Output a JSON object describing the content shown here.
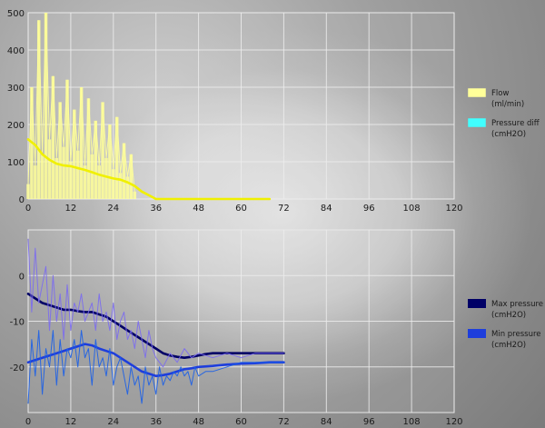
{
  "chart_data": [
    {
      "type": "area",
      "xlim": [
        0,
        120
      ],
      "ylim": [
        0,
        500
      ],
      "xticks": [
        "0",
        "12",
        "24",
        "36",
        "48",
        "60",
        "72",
        "84",
        "96",
        "108",
        "120"
      ],
      "yticks": [
        "0",
        "100",
        "200",
        "300",
        "400",
        "500"
      ],
      "grid": true,
      "legend_position": "right",
      "series": [
        {
          "name": "Flow\n(ml/min)",
          "color": "#ffff99",
          "style": "noisy-fill",
          "x": [
            0,
            1,
            2,
            3,
            4,
            5,
            6,
            7,
            8,
            9,
            10,
            11,
            12,
            13,
            14,
            15,
            16,
            17,
            18,
            19,
            20,
            21,
            22,
            23,
            24,
            25,
            26,
            27,
            28,
            29,
            30
          ],
          "values": [
            40,
            300,
            90,
            480,
            120,
            500,
            160,
            330,
            110,
            260,
            140,
            320,
            100,
            240,
            130,
            300,
            90,
            270,
            120,
            210,
            90,
            260,
            110,
            200,
            80,
            220,
            70,
            150,
            60,
            120,
            20
          ]
        },
        {
          "name": "Flow\n(ml/min)",
          "color": "#f0f000",
          "style": "smooth-line",
          "x": [
            0,
            2,
            4,
            6,
            8,
            10,
            12,
            14,
            16,
            18,
            20,
            22,
            24,
            26,
            28,
            30,
            32,
            34,
            36,
            40,
            48,
            60,
            68
          ],
          "values": [
            160,
            145,
            120,
            105,
            95,
            90,
            88,
            83,
            78,
            72,
            65,
            60,
            55,
            52,
            45,
            35,
            20,
            10,
            0,
            0,
            0,
            0,
            0
          ]
        },
        {
          "name": "Pressure diff\n(cmH2O)",
          "color": "#40ffff",
          "style": "line",
          "x": [],
          "values": []
        }
      ]
    },
    {
      "type": "line",
      "xlim": [
        0,
        120
      ],
      "ylim": [
        -30,
        10
      ],
      "xticks": [
        "0",
        "12",
        "24",
        "36",
        "48",
        "60",
        "72",
        "84",
        "96",
        "108",
        "120"
      ],
      "yticks": [
        "0",
        "-10",
        "-20"
      ],
      "grid": true,
      "legend_position": "right",
      "series": [
        {
          "name": "Max pressure\n(cmH2O)",
          "color": "#000066",
          "style": "smooth-line",
          "x": [
            0,
            2,
            4,
            6,
            8,
            10,
            12,
            14,
            16,
            18,
            20,
            22,
            24,
            26,
            28,
            30,
            32,
            34,
            36,
            38,
            40,
            42,
            44,
            46,
            48,
            50,
            52,
            56,
            60,
            64,
            68,
            72
          ],
          "values": [
            -4,
            -5,
            -6,
            -6.5,
            -7,
            -7.5,
            -7.5,
            -7.8,
            -8,
            -8,
            -8.5,
            -9,
            -10,
            -11,
            -12,
            -13,
            -14,
            -15,
            -16,
            -17,
            -17.5,
            -17.8,
            -18,
            -17.8,
            -17.5,
            -17.2,
            -17,
            -17,
            -17,
            -17,
            -17,
            -17
          ]
        },
        {
          "name": "Max pressure\n(cmH2O)",
          "color": "#7b6cf0",
          "style": "noisy-line",
          "x": [
            0,
            1,
            2,
            3,
            4,
            5,
            6,
            7,
            8,
            9,
            10,
            11,
            12,
            13,
            14,
            15,
            16,
            17,
            18,
            19,
            20,
            21,
            22,
            23,
            24,
            25,
            26,
            27,
            28,
            29,
            30,
            31,
            32,
            33,
            34,
            35,
            36,
            38,
            40,
            42,
            44,
            46,
            48,
            52,
            56,
            60,
            64,
            68,
            72
          ],
          "values": [
            8,
            -8,
            6,
            -6,
            -2,
            2,
            -12,
            0,
            -10,
            -4,
            -14,
            -2,
            -12,
            -6,
            -8,
            -4,
            -10,
            -8,
            -6,
            -12,
            -4,
            -10,
            -8,
            -12,
            -6,
            -14,
            -10,
            -8,
            -14,
            -12,
            -16,
            -10,
            -14,
            -18,
            -12,
            -16,
            -18,
            -20,
            -17,
            -19,
            -16,
            -18,
            -17,
            -18,
            -17,
            -18,
            -17,
            -17,
            -17
          ]
        },
        {
          "name": "Min pressure\n(cmH2O)",
          "color": "#1e3edc",
          "style": "smooth-line",
          "x": [
            0,
            2,
            4,
            6,
            8,
            10,
            12,
            14,
            16,
            18,
            20,
            22,
            24,
            26,
            28,
            30,
            32,
            34,
            36,
            38,
            40,
            42,
            44,
            46,
            48,
            52,
            56,
            60,
            64,
            68,
            72
          ],
          "values": [
            -19,
            -18.5,
            -18,
            -17.5,
            -17,
            -16.5,
            -16,
            -15.5,
            -15,
            -15.3,
            -16,
            -16.5,
            -17,
            -18,
            -19,
            -20,
            -21,
            -21.5,
            -22,
            -21.8,
            -21.5,
            -21,
            -20.5,
            -20.3,
            -20,
            -19.8,
            -19.5,
            -19.3,
            -19.2,
            -19,
            -19
          ]
        },
        {
          "name": "Min pressure\n(cmH2O)",
          "color": "#1b5fe8",
          "style": "noisy-line",
          "x": [
            0,
            1,
            2,
            3,
            4,
            5,
            6,
            7,
            8,
            9,
            10,
            11,
            12,
            13,
            14,
            15,
            16,
            17,
            18,
            19,
            20,
            21,
            22,
            23,
            24,
            25,
            26,
            27,
            28,
            29,
            30,
            31,
            32,
            33,
            34,
            35,
            36,
            37,
            38,
            39,
            40,
            41,
            42,
            43,
            44,
            45,
            46,
            47,
            48,
            50,
            52,
            56,
            60,
            64,
            68,
            72
          ],
          "values": [
            -28,
            -14,
            -22,
            -12,
            -26,
            -16,
            -20,
            -12,
            -24,
            -14,
            -22,
            -16,
            -18,
            -14,
            -20,
            -12,
            -18,
            -16,
            -24,
            -14,
            -20,
            -18,
            -22,
            -16,
            -24,
            -20,
            -18,
            -22,
            -26,
            -20,
            -24,
            -22,
            -28,
            -20,
            -24,
            -22,
            -26,
            -20,
            -24,
            -22,
            -23,
            -21,
            -22,
            -20,
            -22,
            -21,
            -24,
            -20,
            -22,
            -21,
            -21,
            -20,
            -19,
            -19,
            -19,
            -19
          ]
        }
      ]
    }
  ],
  "legend": [
    {
      "label": "Flow\n(ml/min)",
      "line1": "Flow",
      "line2": "(ml/min)",
      "color": "#ffff99"
    },
    {
      "label": "Pressure diff\n(cmH2O)",
      "line1": "Pressure diff",
      "line2": "(cmH2O)",
      "color": "#40ffff"
    },
    {
      "label": "Max pressure\n(cmH2O)",
      "line1": "Max pressure",
      "line2": "(cmH2O)",
      "color": "#000066"
    },
    {
      "label": "Min pressure\n(cmH2O)",
      "line1": "Min pressure",
      "line2": "(cmH2O)",
      "color": "#1e3edc"
    }
  ]
}
